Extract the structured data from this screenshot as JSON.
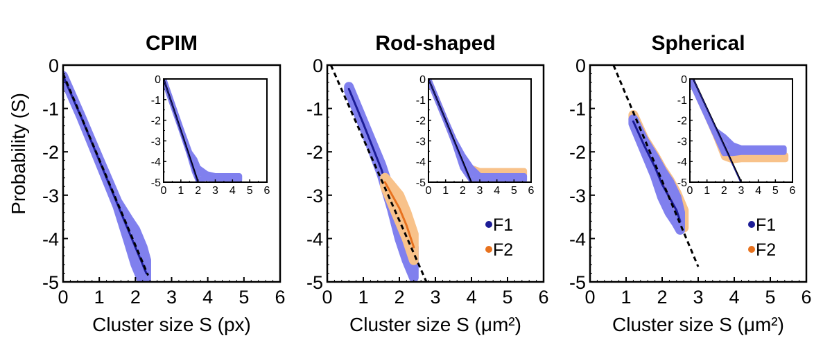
{
  "ylabel": "Probability (S)",
  "colors": {
    "F1": "#1c1c96",
    "F1_band": "#8080ee",
    "F2": "#e8721e",
    "F2_band": "#f8c28a",
    "fit": "#000000",
    "axis": "#000000"
  },
  "chart_data": [
    {
      "type": "line",
      "title": "CPIM",
      "xlabel": "Cluster size S (px)",
      "ylabel": "Probability (S)",
      "xlim": [
        0,
        6
      ],
      "ylim": [
        -5,
        0
      ],
      "xticks": [
        "0",
        "1",
        "2",
        "3",
        "4",
        "5",
        "6"
      ],
      "yticks": [
        "0",
        "-1",
        "-2",
        "-3",
        "-4",
        "-5"
      ],
      "legend": [],
      "fit_line": {
        "x": [
          0,
          2.35
        ],
        "y": [
          -0.2,
          -4.85
        ]
      },
      "series": [
        {
          "name": "",
          "color": "F1",
          "x": [
            0,
            0.5,
            1.0,
            1.5,
            1.8,
            2.0,
            2.2,
            2.3
          ],
          "y": [
            -0.25,
            -1.2,
            -2.2,
            -3.2,
            -3.8,
            -4.2,
            -4.6,
            -4.8
          ],
          "band": [
            0,
            0,
            0.02,
            0.05,
            0.25,
            0.4,
            0.4,
            0.3
          ]
        }
      ],
      "inset": {
        "xlim": [
          0,
          6
        ],
        "ylim": [
          -5,
          0
        ],
        "xticks": [
          "0",
          "1",
          "2",
          "3",
          "4",
          "5",
          "6"
        ],
        "yticks": [
          "0",
          "-1",
          "-2",
          "-3",
          "-4",
          "-5"
        ],
        "fit_line": {
          "x": [
            0,
            2.0
          ],
          "y": [
            0,
            -5
          ]
        },
        "series": [
          {
            "color": "F1",
            "x": [
              0,
              0.5,
              1.0,
              1.5,
              1.8,
              2.0,
              2.5,
              3.0,
              4.4
            ],
            "y": [
              0,
              -1.2,
              -2.4,
              -3.6,
              -4.2,
              -4.6,
              -4.7,
              -4.8,
              -4.8
            ],
            "band": [
              0,
              0,
              0,
              0.05,
              0.3,
              0.3,
              0.1,
              0.1,
              0.1
            ]
          }
        ]
      }
    },
    {
      "type": "line",
      "title": "Rod-shaped",
      "xlabel": "Cluster size S (μm²)",
      "ylabel": "",
      "xlim": [
        0,
        6
      ],
      "ylim": [
        -5,
        0
      ],
      "xticks": [
        "0",
        "1",
        "2",
        "3",
        "4",
        "5",
        "6"
      ],
      "yticks": [
        "0",
        "-1",
        "-2",
        "-3",
        "-4",
        "-5"
      ],
      "legend": [
        "F1",
        "F2"
      ],
      "fit_line": {
        "x": [
          0.1,
          2.75
        ],
        "y": [
          0,
          -5
        ]
      },
      "series": [
        {
          "name": "F1",
          "color": "F1",
          "x": [
            0.6,
            1.0,
            1.5,
            1.8,
            2.0,
            2.2,
            2.4
          ],
          "y": [
            -0.55,
            -1.35,
            -2.4,
            -3.2,
            -3.7,
            -4.1,
            -4.55
          ],
          "band": [
            0.05,
            0.05,
            0.1,
            0.15,
            0.3,
            0.4,
            0.35
          ]
        },
        {
          "name": "F2",
          "color": "F2",
          "x": [
            1.6,
            1.8,
            2.0,
            2.2,
            2.4
          ],
          "y": [
            -2.7,
            -3.0,
            -3.3,
            -3.7,
            -4.2
          ],
          "band": [
            0.1,
            0.2,
            0.3,
            0.3,
            0.3
          ]
        }
      ],
      "inset": {
        "xlim": [
          0,
          6
        ],
        "ylim": [
          -5,
          0
        ],
        "xticks": [
          "0",
          "1",
          "2",
          "3",
          "4",
          "5",
          "6"
        ],
        "yticks": [
          "0",
          "-1",
          "-2",
          "-3",
          "-4",
          "-5"
        ],
        "fit_line": {
          "x": [
            0,
            2.5
          ],
          "y": [
            0,
            -5
          ]
        },
        "series": [
          {
            "color": "F2",
            "x": [
              0,
              0.6,
              1.0,
              1.5,
              2.0,
              2.5,
              3.0,
              5.6
            ],
            "y": [
              0,
              -1.2,
              -2.0,
              -3.0,
              -4.0,
              -4.5,
              -4.55,
              -4.55
            ],
            "band": [
              0,
              0,
              0,
              0.05,
              0.1,
              0.2,
              0.1,
              0.1
            ]
          },
          {
            "color": "F1",
            "x": [
              0,
              0.6,
              1.0,
              1.5,
              2.0,
              2.5,
              3.0,
              5.6
            ],
            "y": [
              0,
              -1.2,
              -2.0,
              -3.0,
              -4.0,
              -4.6,
              -4.8,
              -4.8
            ],
            "band": [
              0,
              0,
              0,
              0.05,
              0.3,
              0.3,
              0.1,
              0.1
            ]
          }
        ]
      }
    },
    {
      "type": "line",
      "title": "Spherical",
      "xlabel": "Cluster size S (μm²)",
      "ylabel": "",
      "xlim": [
        0,
        6
      ],
      "ylim": [
        -5,
        0
      ],
      "xticks": [
        "0",
        "1",
        "2",
        "3",
        "4",
        "5",
        "6"
      ],
      "yticks": [
        "0",
        "-1",
        "-2",
        "-3",
        "-4",
        "-5"
      ],
      "legend": [
        "F1",
        "F2"
      ],
      "fit_line": {
        "x": [
          0.65,
          3.0
        ],
        "y": [
          0,
          -4.65
        ]
      },
      "series": [
        {
          "name": "F2",
          "color": "F2",
          "x": [
            1.2,
            1.5,
            1.8,
            2.0,
            2.2,
            2.4,
            2.6
          ],
          "y": [
            -1.2,
            -1.8,
            -2.3,
            -2.7,
            -3.0,
            -3.3,
            -3.55
          ],
          "band": [
            0.05,
            0.1,
            0.2,
            0.3,
            0.35,
            0.35,
            0.2
          ]
        },
        {
          "name": "F1",
          "color": "F1",
          "x": [
            1.2,
            1.5,
            1.8,
            2.0,
            2.2,
            2.4,
            2.5
          ],
          "y": [
            -1.3,
            -1.85,
            -2.35,
            -2.75,
            -3.05,
            -3.35,
            -3.6
          ],
          "band": [
            0.05,
            0.1,
            0.2,
            0.3,
            0.35,
            0.3,
            0.2
          ]
        }
      ],
      "inset": {
        "xlim": [
          0,
          6
        ],
        "ylim": [
          -5,
          0
        ],
        "xticks": [
          "0",
          "1",
          "2",
          "3",
          "4",
          "5",
          "6"
        ],
        "yticks": [
          "0",
          "-1",
          "-2",
          "-3",
          "-4",
          "-5"
        ],
        "fit_line": {
          "x": [
            0.2,
            3.0
          ],
          "y": [
            0,
            -5
          ]
        },
        "series": [
          {
            "color": "F2",
            "x": [
              0,
              0.5,
              1.0,
              1.5,
              2.0,
              2.5,
              3.0,
              5.6
            ],
            "y": [
              0,
              -0.9,
              -1.8,
              -2.7,
              -3.5,
              -3.8,
              -3.8,
              -3.8
            ],
            "band": [
              0,
              0,
              0,
              0.05,
              0.3,
              0.15,
              0.1,
              0.1
            ]
          },
          {
            "color": "F1",
            "x": [
              0,
              0.5,
              1.0,
              1.5,
              2.0,
              2.5,
              3.0,
              5.5
            ],
            "y": [
              0,
              -0.9,
              -1.8,
              -2.6,
              -3.2,
              -3.4,
              -3.45,
              -3.45
            ],
            "band": [
              0,
              0,
              0,
              0.1,
              0.4,
              0.2,
              0.1,
              0.1
            ]
          }
        ]
      }
    }
  ]
}
